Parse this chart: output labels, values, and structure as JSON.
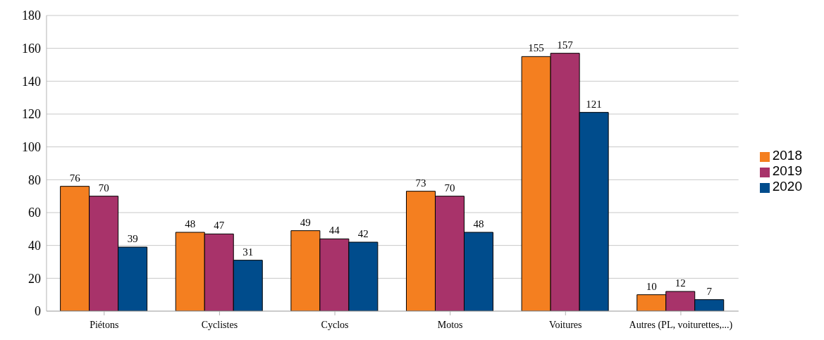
{
  "chart_data": {
    "type": "bar",
    "categories": [
      "Piétons",
      "Cyclistes",
      "Cyclos",
      "Motos",
      "Voitures",
      "Autres (PL, voiturettes,...)"
    ],
    "series": [
      {
        "name": "2018",
        "color": "#f47f20",
        "values": [
          76,
          48,
          49,
          73,
          155,
          10
        ]
      },
      {
        "name": "2019",
        "color": "#a8336a",
        "values": [
          70,
          47,
          44,
          70,
          157,
          12
        ]
      },
      {
        "name": "2020",
        "color": "#004c8c",
        "values": [
          39,
          31,
          42,
          48,
          121,
          7
        ]
      }
    ],
    "ylim": [
      0,
      180
    ],
    "yticks": [
      0,
      20,
      40,
      60,
      80,
      100,
      120,
      140,
      160,
      180
    ],
    "grid": "y",
    "legend": "right",
    "data_labels": true
  }
}
